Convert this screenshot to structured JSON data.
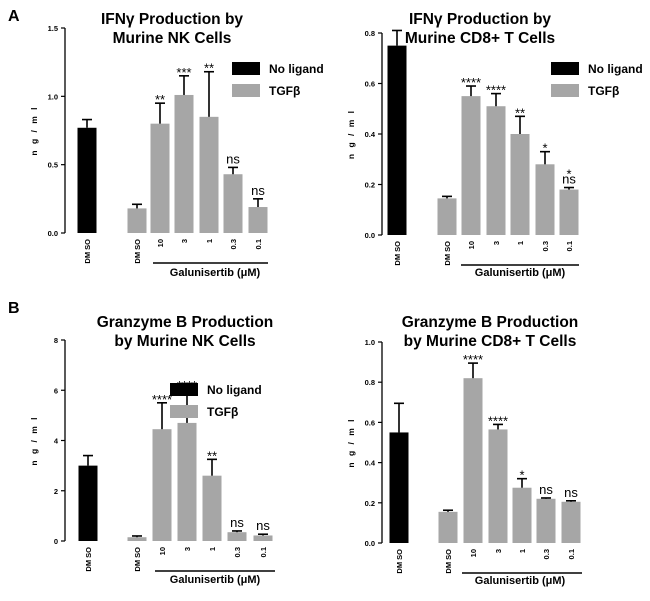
{
  "panel_labels": {
    "a": "A",
    "b": "B"
  },
  "colors": {
    "no_ligand": "#000000",
    "tgfb": "#a6a6a6",
    "axis": "#000000"
  },
  "chart_data": [
    {
      "id": "c1",
      "type": "bar",
      "title": [
        "IFNγ Production by",
        "Murine NK Cells"
      ],
      "ylabel": "n g / m l",
      "ylim": [
        0,
        1.5
      ],
      "yticks": [
        "0.0",
        "0.5",
        "1.0",
        "1.5"
      ],
      "ytick_values": [
        0,
        0.5,
        1.0,
        1.5
      ],
      "xlabel": "Galunisertib (μM)",
      "categories": [
        "DM SO",
        "DM SO",
        "10",
        "3",
        "1",
        "0.3",
        "0.1"
      ],
      "values": [
        0.77,
        0.18,
        0.8,
        1.01,
        0.85,
        0.43,
        0.19
      ],
      "errors": [
        0.06,
        0.03,
        0.15,
        0.14,
        0.33,
        0.05,
        0.06
      ],
      "groups": [
        "No ligand",
        "TGFβ",
        "TGFβ",
        "TGFβ",
        "TGFβ",
        "TGFβ",
        "TGFβ"
      ],
      "significance": [
        "",
        "",
        "**",
        "***",
        "**",
        "ns",
        "ns"
      ],
      "legend": [
        "No ligand",
        "TGFβ"
      ]
    },
    {
      "id": "c2",
      "type": "bar",
      "title": [
        "IFNγ Production by",
        "Murine CD8+ T Cells"
      ],
      "ylabel": "n g / m l",
      "ylim": [
        0,
        0.8
      ],
      "yticks": [
        "0.0",
        "0.2",
        "0.4",
        "0.6",
        "0.8"
      ],
      "ytick_values": [
        0,
        0.2,
        0.4,
        0.6,
        0.8
      ],
      "xlabel": "Galunisertib (μM)",
      "categories": [
        "DM SO",
        "DM SO",
        "10",
        "3",
        "1",
        "0.3",
        "0.1"
      ],
      "values": [
        0.75,
        0.145,
        0.55,
        0.51,
        0.4,
        0.28,
        0.18
      ],
      "errors": [
        0.06,
        0.008,
        0.04,
        0.05,
        0.07,
        0.05,
        0.008
      ],
      "groups": [
        "No ligand",
        "TGFβ",
        "TGFβ",
        "TGFβ",
        "TGFβ",
        "TGFβ",
        "TGFβ"
      ],
      "significance": [
        "",
        "",
        "****",
        "****",
        "**",
        "*",
        "*\nns"
      ],
      "legend": [
        "No ligand",
        "TGFβ"
      ]
    },
    {
      "id": "c3",
      "type": "bar",
      "title": [
        "Granzyme B Production",
        "by Murine NK Cells"
      ],
      "ylabel": "n g / m l",
      "ylim": [
        0,
        8
      ],
      "yticks": [
        "0",
        "2",
        "4",
        "6",
        "8"
      ],
      "ytick_values": [
        0,
        2,
        4,
        6,
        8
      ],
      "xlabel": "Galunisertib (μM)",
      "categories": [
        "DM SO",
        "DM SO",
        "10",
        "3",
        "1",
        "0.3",
        "0.1"
      ],
      "values": [
        3.0,
        0.15,
        4.45,
        4.7,
        2.6,
        0.35,
        0.22
      ],
      "errors": [
        0.4,
        0.05,
        1.05,
        1.35,
        0.65,
        0.05,
        0.05
      ],
      "groups": [
        "No ligand",
        "TGFβ",
        "TGFβ",
        "TGFβ",
        "TGFβ",
        "TGFβ",
        "TGFβ"
      ],
      "significance": [
        "",
        "",
        "****",
        "****",
        "**",
        "ns",
        "ns"
      ],
      "legend": [
        "No ligand",
        "TGFβ"
      ]
    },
    {
      "id": "c4",
      "type": "bar",
      "title": [
        "Granzyme B Production",
        "by Murine CD8+ T Cells"
      ],
      "ylabel": "n g / m l",
      "ylim": [
        0,
        1.0
      ],
      "yticks": [
        "0.0",
        "0.2",
        "0.4",
        "0.6",
        "0.8",
        "1.0"
      ],
      "ytick_values": [
        0,
        0.2,
        0.4,
        0.6,
        0.8,
        1.0
      ],
      "xlabel": "Galunisertib (μM)",
      "categories": [
        "DM SO",
        "DM SO",
        "10",
        "3",
        "1",
        "0.3",
        "0.1"
      ],
      "values": [
        0.55,
        0.155,
        0.82,
        0.565,
        0.275,
        0.22,
        0.205
      ],
      "errors": [
        0.145,
        0.008,
        0.075,
        0.025,
        0.045,
        0.004,
        0.005
      ],
      "groups": [
        "No ligand",
        "TGFβ",
        "TGFβ",
        "TGFβ",
        "TGFβ",
        "TGFβ",
        "TGFβ"
      ],
      "significance": [
        "",
        "",
        "****",
        "****",
        "*",
        "ns",
        "ns"
      ],
      "legend": []
    }
  ]
}
